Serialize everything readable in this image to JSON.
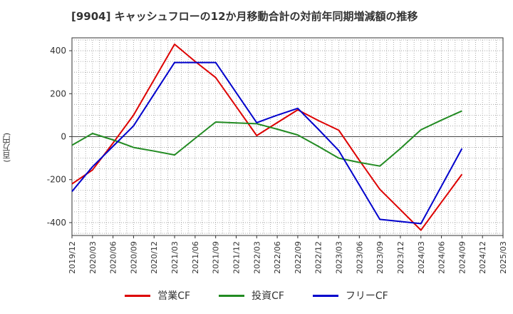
{
  "chart_data": {
    "type": "line",
    "title": "[9904]  キャッシュフローの12か月移動合計の対前年同期増減額の推移",
    "ylabel": "(百万円)",
    "xlabel": "",
    "ylim": [
      -460,
      460
    ],
    "yticks": [
      -400,
      -200,
      0,
      200,
      400
    ],
    "x_tick_labels": [
      "2019/12",
      "2020/03",
      "2020/06",
      "2020/09",
      "2020/12",
      "2021/03",
      "2021/06",
      "2021/09",
      "2021/12",
      "2022/03",
      "2022/06",
      "2022/09",
      "2022/12",
      "2023/03",
      "2023/06",
      "2023/09",
      "2023/12",
      "2024/03",
      "2024/06",
      "2024/09",
      "2024/12",
      "2025/03"
    ],
    "grid": true,
    "legend_position": "bottom",
    "series": [
      {
        "name": "営業CF",
        "color": "#dd0000",
        "x": [
          "2019/12",
          "2020/03",
          "2020/06",
          "2020/09",
          "2020/12",
          "2021/03",
          "2021/06",
          "2021/09",
          "2021/12",
          "2022/03",
          "2022/06",
          "2022/09",
          "2022/12",
          "2023/03",
          "2023/06",
          "2023/09",
          "2023/12",
          "2024/03",
          "2024/06",
          "2024/09"
        ],
        "values": [
          -220,
          -155,
          -30,
          100,
          265,
          430,
          350,
          275,
          140,
          5,
          65,
          125,
          75,
          30,
          -110,
          -245,
          -340,
          -435,
          -305,
          -175
        ]
      },
      {
        "name": "投資CF",
        "color": "#228b22",
        "x": [
          "2019/12",
          "2020/03",
          "2020/06",
          "2020/09",
          "2020/12",
          "2021/03",
          "2021/06",
          "2021/09",
          "2021/12",
          "2022/03",
          "2022/06",
          "2022/09",
          "2022/12",
          "2023/03",
          "2023/06",
          "2023/09",
          "2023/12",
          "2024/03",
          "2024/06",
          "2024/09"
        ],
        "values": [
          -40,
          15,
          -15,
          -50,
          -67,
          -85,
          -8,
          68,
          64,
          60,
          35,
          8,
          -45,
          -100,
          -120,
          -137,
          -55,
          32,
          77,
          120
        ]
      },
      {
        "name": "フリーCF",
        "color": "#0000cc",
        "x": [
          "2019/12",
          "2020/03",
          "2020/06",
          "2020/09",
          "2020/12",
          "2021/03",
          "2021/06",
          "2021/09",
          "2021/12",
          "2022/03",
          "2022/06",
          "2022/09",
          "2022/12",
          "2023/03",
          "2023/06",
          "2023/09",
          "2023/12",
          "2024/03",
          "2024/06",
          "2024/09"
        ],
        "values": [
          -255,
          -140,
          -45,
          50,
          198,
          345,
          345,
          345,
          205,
          65,
          100,
          132,
          35,
          -65,
          -225,
          -385,
          -395,
          -405,
          -230,
          -55
        ]
      }
    ]
  }
}
